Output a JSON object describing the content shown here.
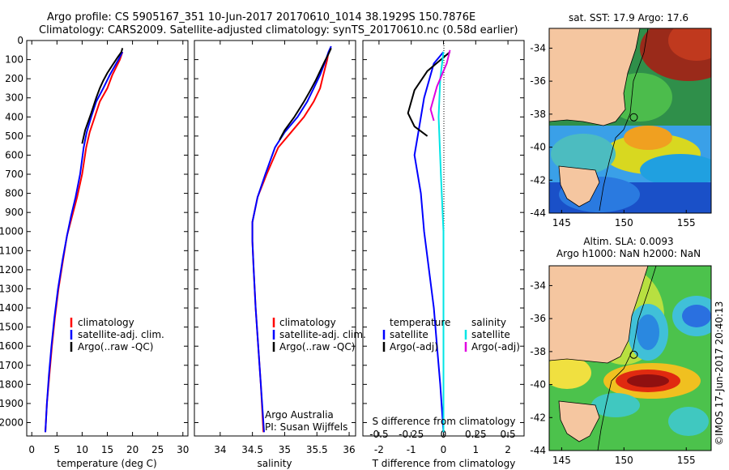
{
  "header": {
    "line1": "Argo profile: CS 5905167_351 10-Jun-2017 20170610_1014 38.1929S 150.7876E",
    "line2": "Climatology: CARS2009. Satellite-adjusted climatology: synTS_20170610.nc (0.58d earlier)"
  },
  "colors": {
    "climatology": "#ff0000",
    "satellite": "#0000ff",
    "argo": "#000000",
    "sal_satellite": "#00e5e5",
    "sal_argo": "#e000e0",
    "land": "#f5c6a0"
  },
  "chart_data": [
    {
      "type": "line",
      "id": "temperature",
      "xlabel": "temperature (deg C)",
      "ylabel": "",
      "xlim": [
        -1,
        31
      ],
      "ylim": [
        2070,
        0
      ],
      "xticks": [
        0,
        5,
        10,
        15,
        20,
        25,
        30
      ],
      "yticks": [
        0,
        100,
        200,
        300,
        400,
        500,
        600,
        700,
        800,
        900,
        1000,
        1100,
        1200,
        1300,
        1400,
        1500,
        1600,
        1700,
        1800,
        1900,
        2000
      ],
      "legend": [
        "climatology",
        "satellite-adj. clim.",
        "Argo(..raw -QC)"
      ],
      "series": [
        {
          "name": "climatology",
          "color": "#ff0000",
          "points": [
            [
              18,
              60
            ],
            [
              17.5,
              100
            ],
            [
              16,
              180
            ],
            [
              15,
              250
            ],
            [
              13.5,
              320
            ],
            [
              12.5,
              400
            ],
            [
              11.5,
              480
            ],
            [
              10.8,
              560
            ],
            [
              10,
              700
            ],
            [
              9,
              820
            ],
            [
              8,
              920
            ],
            [
              7,
              1020
            ],
            [
              6.2,
              1150
            ],
            [
              5.3,
              1300
            ],
            [
              4.6,
              1450
            ],
            [
              4,
              1600
            ],
            [
              3.5,
              1750
            ],
            [
              3,
              1900
            ],
            [
              2.7,
              2050
            ]
          ]
        },
        {
          "name": "satellite-adj. clim.",
          "color": "#0000ff",
          "points": [
            [
              18,
              60
            ],
            [
              17.2,
              100
            ],
            [
              15.5,
              180
            ],
            [
              14.2,
              250
            ],
            [
              12.8,
              320
            ],
            [
              11.8,
              400
            ],
            [
              10.9,
              480
            ],
            [
              10.3,
              560
            ],
            [
              9.6,
              700
            ],
            [
              8.7,
              820
            ],
            [
              7.8,
              920
            ],
            [
              7,
              1020
            ],
            [
              6.1,
              1150
            ],
            [
              5.2,
              1300
            ],
            [
              4.5,
              1450
            ],
            [
              3.9,
              1600
            ],
            [
              3.4,
              1750
            ],
            [
              3,
              1900
            ],
            [
              2.7,
              2050
            ]
          ]
        },
        {
          "name": "Argo(..raw -QC)",
          "color": "#000000",
          "points": [
            [
              18,
              40
            ],
            [
              17.8,
              60
            ],
            [
              17,
              90
            ],
            [
              16,
              130
            ],
            [
              15,
              170
            ],
            [
              14.2,
              210
            ],
            [
              13.5,
              250
            ],
            [
              12.8,
              300
            ],
            [
              11.8,
              380
            ],
            [
              10.6,
              470
            ],
            [
              10,
              540
            ]
          ]
        }
      ]
    },
    {
      "type": "line",
      "id": "salinity",
      "xlabel": "salinity",
      "ylabel": "",
      "xlim": [
        33.6,
        36.1
      ],
      "ylim": [
        2070,
        0
      ],
      "xticks": [
        34,
        34.5,
        35,
        35.5,
        36
      ],
      "legend": [
        "climatology",
        "satellite-adj. clim.",
        "Argo(..raw -QC)"
      ],
      "annotation": [
        "Argo Australia",
        "PI: Susan Wijffels"
      ],
      "series": [
        {
          "name": "climatology",
          "color": "#ff0000",
          "points": [
            [
              35.68,
              60
            ],
            [
              35.66,
              100
            ],
            [
              35.6,
              180
            ],
            [
              35.55,
              250
            ],
            [
              35.45,
              320
            ],
            [
              35.3,
              400
            ],
            [
              35.1,
              480
            ],
            [
              34.9,
              560
            ],
            [
              34.72,
              700
            ],
            [
              34.58,
              820
            ],
            [
              34.5,
              950
            ],
            [
              34.5,
              1050
            ],
            [
              34.52,
              1200
            ],
            [
              34.55,
              1400
            ],
            [
              34.59,
              1600
            ],
            [
              34.63,
              1800
            ],
            [
              34.67,
              2050
            ]
          ]
        },
        {
          "name": "satellite-adj. clim.",
          "color": "#0000ff",
          "points": [
            [
              35.72,
              30
            ],
            [
              35.68,
              60
            ],
            [
              35.64,
              100
            ],
            [
              35.55,
              180
            ],
            [
              35.45,
              250
            ],
            [
              35.35,
              320
            ],
            [
              35.2,
              400
            ],
            [
              35.0,
              480
            ],
            [
              34.85,
              560
            ],
            [
              34.7,
              700
            ],
            [
              34.58,
              820
            ],
            [
              34.5,
              950
            ],
            [
              34.5,
              1050
            ],
            [
              34.52,
              1200
            ],
            [
              34.55,
              1400
            ],
            [
              34.59,
              1600
            ],
            [
              34.63,
              1800
            ],
            [
              34.68,
              2050
            ]
          ]
        },
        {
          "name": "Argo(..raw -QC)",
          "color": "#000000",
          "points": [
            [
              35.72,
              40
            ],
            [
              35.68,
              70
            ],
            [
              35.62,
              110
            ],
            [
              35.55,
              160
            ],
            [
              35.48,
              210
            ],
            [
              35.4,
              260
            ],
            [
              35.3,
              320
            ],
            [
              35.15,
              400
            ],
            [
              35.0,
              470
            ],
            [
              34.92,
              520
            ]
          ]
        }
      ]
    },
    {
      "type": "line",
      "id": "difference",
      "xlabel": "T difference from climatology",
      "x2label": "S difference from climatology",
      "xlim": [
        -2.5,
        2.5
      ],
      "ylim": [
        2070,
        0
      ],
      "xticks": [
        -2,
        -1,
        0,
        1,
        2
      ],
      "x2ticks": [
        -0.5,
        -0.25,
        0,
        0.25,
        0.5
      ],
      "legend_temperature": [
        "temperature",
        "satellite",
        "Argo(-adj)"
      ],
      "legend_salinity": [
        "salinity",
        "satellite",
        "Argo(-adj)"
      ],
      "series": [
        {
          "name": "temperature satellite",
          "color": "#0000ff",
          "points": [
            [
              0,
              60
            ],
            [
              -0.3,
              120
            ],
            [
              -0.6,
              300
            ],
            [
              -0.8,
              500
            ],
            [
              -0.9,
              600
            ],
            [
              -0.7,
              800
            ],
            [
              -0.6,
              1000
            ],
            [
              -0.45,
              1200
            ],
            [
              -0.3,
              1400
            ],
            [
              -0.2,
              1600
            ],
            [
              -0.1,
              1800
            ],
            [
              0,
              2050
            ]
          ]
        },
        {
          "name": "temperature Argo(-adj)",
          "color": "#000000",
          "points": [
            [
              0.2,
              60
            ],
            [
              -0.5,
              160
            ],
            [
              -0.9,
              260
            ],
            [
              -1.1,
              380
            ],
            [
              -0.9,
              450
            ],
            [
              -0.5,
              500
            ]
          ]
        },
        {
          "name": "salinity satellite",
          "color": "#00e5e5",
          "points": [
            [
              0,
              60
            ],
            [
              -0.1,
              200
            ],
            [
              -0.15,
              400
            ],
            [
              -0.08,
              700
            ],
            [
              0,
              1000
            ],
            [
              0,
              2050
            ]
          ]
        },
        {
          "name": "salinity Argo(-adj)",
          "color": "#e000e0",
          "points": [
            [
              0.2,
              50
            ],
            [
              0.1,
              120
            ],
            [
              -0.2,
              240
            ],
            [
              -0.4,
              360
            ],
            [
              -0.3,
              420
            ]
          ]
        }
      ]
    },
    {
      "type": "heatmap",
      "id": "sst-map",
      "title": "sat. SST: 17.9 Argo: 17.6",
      "xticks": [
        145,
        150,
        155
      ],
      "yticks": [
        -34,
        -36,
        -38,
        -40,
        -42,
        -44
      ],
      "xlim": [
        144,
        157
      ],
      "ylim": [
        -44,
        -32.8
      ],
      "marker": [
        150.79,
        -38.19
      ]
    },
    {
      "type": "heatmap",
      "id": "sla-map",
      "title": "Altim. SLA: 0.0093",
      "subtitle": "Argo h1000: NaN h2000: NaN",
      "xticks": [
        145,
        150,
        155
      ],
      "yticks": [
        -34,
        -36,
        -38,
        -40,
        -42,
        -44
      ],
      "xlim": [
        144,
        157
      ],
      "ylim": [
        -44,
        -32.8
      ],
      "marker": [
        150.79,
        -38.19
      ]
    }
  ],
  "watermark": "©IMOS 17-Jun-2017 20:40:13"
}
